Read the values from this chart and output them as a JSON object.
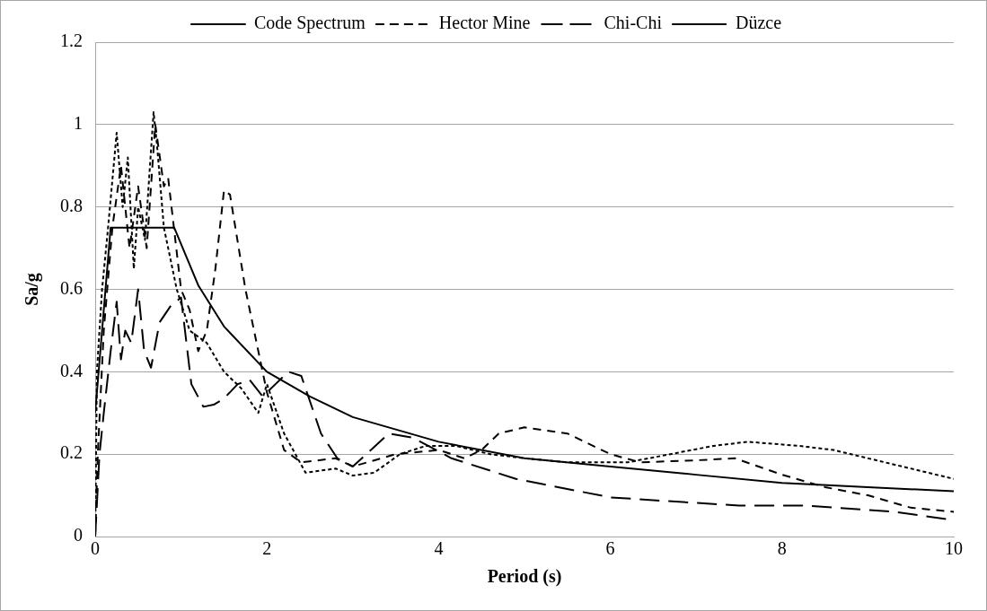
{
  "chart_data": {
    "type": "line",
    "xlabel": "Period (s)",
    "ylabel": "Sa/g",
    "xlim": [
      0,
      10
    ],
    "xticks": [
      0,
      2,
      4,
      6,
      8,
      10
    ],
    "ylim": [
      0,
      1.2
    ],
    "yticks": [
      0,
      0.2,
      0.4,
      0.6,
      0.8,
      1,
      1.2
    ],
    "grid": "y",
    "legend": "top",
    "marker": "none",
    "series": [
      {
        "name": "Code Spectrum",
        "color": "#000000",
        "line_style": "solid",
        "x": [
          0,
          0.18,
          0.92,
          1.2,
          1.5,
          2,
          2.5,
          3,
          4,
          5,
          6,
          7,
          8,
          9,
          10
        ],
        "values": [
          0.3,
          0.75,
          0.75,
          0.61,
          0.51,
          0.4,
          0.34,
          0.29,
          0.23,
          0.19,
          0.17,
          0.15,
          0.13,
          0.12,
          0.11
        ]
      },
      {
        "name": "Hector Mine",
        "color": "#000000",
        "line_style": "dashed",
        "x": [
          0,
          0.03,
          0.1,
          0.2,
          0.3,
          0.4,
          0.5,
          0.6,
          0.7,
          0.8,
          0.85,
          1,
          1.1,
          1.2,
          1.3,
          1.4,
          1.5,
          1.57,
          1.75,
          2,
          2.2,
          2.4,
          2.8,
          3,
          3.5,
          4,
          4.3,
          4.5,
          4.7,
          5,
          5.5,
          6,
          6.35,
          7,
          7.45,
          8,
          8.5,
          9,
          9.5,
          10
        ],
        "values": [
          0,
          0.2,
          0.5,
          0.75,
          0.9,
          0.7,
          0.85,
          0.7,
          1,
          0.85,
          0.87,
          0.6,
          0.55,
          0.45,
          0.5,
          0.65,
          0.84,
          0.83,
          0.6,
          0.35,
          0.21,
          0.18,
          0.19,
          0.17,
          0.2,
          0.21,
          0.19,
          0.21,
          0.25,
          0.265,
          0.25,
          0.2,
          0.18,
          0.185,
          0.19,
          0.15,
          0.12,
          0.1,
          0.07,
          0.06
        ]
      },
      {
        "name": "Chi-Chi",
        "color": "#000000",
        "line_style": "longdashed",
        "x": [
          0,
          0.05,
          0.1,
          0.18,
          0.25,
          0.3,
          0.35,
          0.42,
          0.5,
          0.57,
          0.65,
          0.75,
          0.88,
          1,
          1.12,
          1.26,
          1.38,
          1.5,
          1.66,
          1.8,
          1.95,
          2.1,
          2.25,
          2.4,
          2.63,
          2.82,
          3,
          3.42,
          3.7,
          4.15,
          4.9,
          6,
          7.5,
          8.3,
          9.3,
          10
        ],
        "values": [
          0,
          0.2,
          0.3,
          0.45,
          0.57,
          0.43,
          0.5,
          0.47,
          0.6,
          0.45,
          0.41,
          0.52,
          0.56,
          0.58,
          0.37,
          0.315,
          0.32,
          0.335,
          0.37,
          0.38,
          0.34,
          0.37,
          0.4,
          0.39,
          0.25,
          0.19,
          0.17,
          0.25,
          0.24,
          0.19,
          0.14,
          0.095,
          0.075,
          0.075,
          0.06,
          0.04
        ]
      },
      {
        "name": "Düzce",
        "color": "#000000",
        "line_style": "dotted",
        "x": [
          0,
          0.02,
          0.08,
          0.15,
          0.25,
          0.32,
          0.38,
          0.45,
          0.5,
          0.58,
          0.68,
          0.72,
          0.8,
          0.95,
          1.1,
          1.3,
          1.5,
          1.7,
          1.9,
          2,
          2.2,
          2.45,
          2.8,
          3,
          3.25,
          3.55,
          3.85,
          4.2,
          4.6,
          5,
          5.5,
          6.2,
          6.7,
          7.2,
          7.6,
          8.2,
          8.6,
          9.2,
          10
        ],
        "values": [
          0,
          0.4,
          0.6,
          0.75,
          0.98,
          0.8,
          0.92,
          0.65,
          0.8,
          0.72,
          1.03,
          0.95,
          0.75,
          0.6,
          0.5,
          0.47,
          0.4,
          0.36,
          0.3,
          0.37,
          0.25,
          0.155,
          0.165,
          0.148,
          0.155,
          0.2,
          0.22,
          0.22,
          0.2,
          0.19,
          0.18,
          0.18,
          0.2,
          0.22,
          0.23,
          0.22,
          0.21,
          0.18,
          0.14
        ]
      }
    ]
  }
}
